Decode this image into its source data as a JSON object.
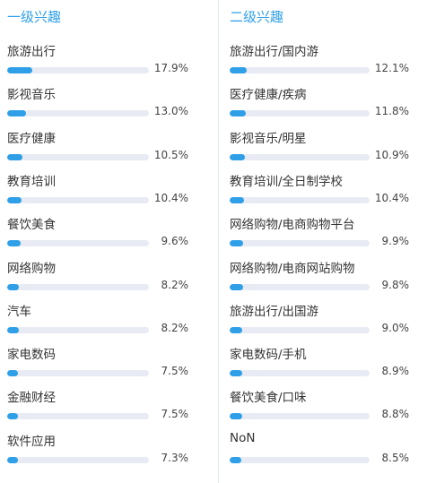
{
  "colors": {
    "accent": "#2f9fe8",
    "track": "#e8ebf3"
  },
  "chart_data": [
    {
      "type": "bar",
      "title": "一级兴趣",
      "categories": [
        "旅游出行",
        "影视音乐",
        "医疗健康",
        "教育培训",
        "餐饮美食",
        "网络购物",
        "汽车",
        "家电数码",
        "金融财经",
        "软件应用"
      ],
      "values": [
        17.9,
        13.0,
        10.5,
        10.4,
        9.6,
        8.2,
        8.2,
        7.5,
        7.5,
        7.3
      ],
      "value_labels": [
        "17.9%",
        "13.0%",
        "10.5%",
        "10.4%",
        "9.6%",
        "8.2%",
        "8.2%",
        "7.5%",
        "7.5%",
        "7.3%"
      ],
      "ylim": [
        0,
        100
      ]
    },
    {
      "type": "bar",
      "title": "二级兴趣",
      "categories": [
        "旅游出行/国内游",
        "医疗健康/疾病",
        "影视音乐/明星",
        "教育培训/全日制学校",
        "网络购物/电商购物平台",
        "网络购物/电商网站购物",
        "旅游出行/出国游",
        "家电数码/手机",
        "餐饮美食/口味",
        "NoN"
      ],
      "values": [
        12.1,
        11.8,
        10.9,
        10.4,
        9.9,
        9.8,
        9.0,
        8.9,
        8.8,
        8.5
      ],
      "value_labels": [
        "12.1%",
        "11.8%",
        "10.9%",
        "10.4%",
        "9.9%",
        "9.8%",
        "9.0%",
        "8.9%",
        "8.8%",
        "8.5%"
      ],
      "ylim": [
        0,
        100
      ]
    }
  ]
}
